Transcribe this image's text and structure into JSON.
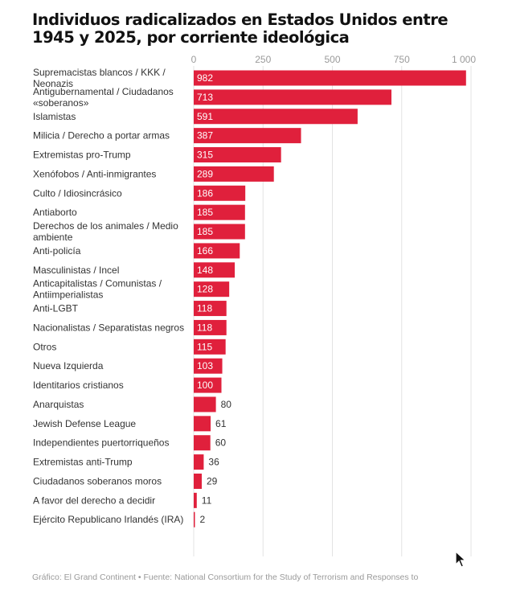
{
  "title": "Individuos radicalizados en Estados Unidos entre 1945 y 2025, por corriente ideológica",
  "footer": "Gráfico: El Grand Continent • Fuente: National Consortium for the Study of Terrorism and Responses to",
  "colors": {
    "bar": "#e0203c",
    "grid": "#e3e3e3"
  },
  "chart_data": {
    "type": "bar",
    "orientation": "horizontal",
    "title": "Individuos radicalizados en Estados Unidos entre 1945 y 2025, por corriente ideológica",
    "xlim": [
      0,
      1000
    ],
    "x_ticks": [
      0,
      250,
      500,
      750,
      1000
    ],
    "x_tick_labels": [
      "0",
      "250",
      "500",
      "750",
      "1 000"
    ],
    "grid": true,
    "categories": [
      [
        "Supremacistas blancos / KKK /",
        "Neonazis"
      ],
      [
        "Antigubernamental / Ciudadanos",
        "«soberanos»"
      ],
      [
        "Islamistas"
      ],
      [
        "Milicia / Derecho a portar armas"
      ],
      [
        "Extremistas pro-Trump"
      ],
      [
        "Xenófobos / Anti-inmigrantes"
      ],
      [
        "Culto / Idiosincrásico"
      ],
      [
        "Antiaborto"
      ],
      [
        "Derechos de los animales / Medio",
        "ambiente"
      ],
      [
        "Anti-policía"
      ],
      [
        "Masculinistas / Incel"
      ],
      [
        "Anticapitalistas / Comunistas /",
        "Antiimperialistas"
      ],
      [
        "Anti-LGBT"
      ],
      [
        "Nacionalistas / Separatistas negros"
      ],
      [
        "Otros"
      ],
      [
        "Nueva Izquierda"
      ],
      [
        "Identitarios cristianos"
      ],
      [
        "Anarquistas"
      ],
      [
        "Jewish Defense League"
      ],
      [
        "Independientes puertorriqueños"
      ],
      [
        "Extremistas anti-Trump"
      ],
      [
        "Ciudadanos soberanos moros"
      ],
      [
        "A favor del derecho a decidir"
      ],
      [
        "Ejército Republicano Irlandés (IRA)"
      ]
    ],
    "values": [
      982,
      713,
      591,
      387,
      315,
      289,
      186,
      185,
      185,
      166,
      148,
      128,
      118,
      118,
      115,
      103,
      100,
      80,
      61,
      60,
      36,
      29,
      11,
      2
    ]
  }
}
